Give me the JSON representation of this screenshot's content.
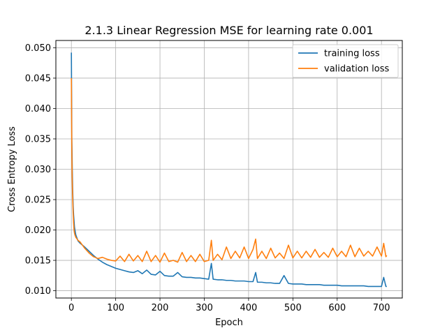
{
  "chart_data": {
    "type": "line",
    "title": "2.1.3 Linear Regression MSE for learning rate 0.001",
    "xlabel": "Epoch",
    "ylabel": "Cross Entropy Loss",
    "xlim": [
      -35,
      747
    ],
    "ylim": [
      0.0088,
      0.0512
    ],
    "xticks": [
      0,
      100,
      200,
      300,
      400,
      500,
      600,
      700
    ],
    "xtick_labels": [
      "0",
      "100",
      "200",
      "300",
      "400",
      "500",
      "600",
      "700"
    ],
    "yticks": [
      0.01,
      0.015,
      0.02,
      0.025,
      0.03,
      0.035,
      0.04,
      0.045,
      0.05
    ],
    "ytick_labels": [
      "0.010",
      "0.015",
      "0.020",
      "0.025",
      "0.030",
      "0.035",
      "0.040",
      "0.045",
      "0.050"
    ],
    "grid": true,
    "legend_position": "top-right",
    "series": [
      {
        "name": "training loss",
        "color": "#1f77b4",
        "x": [
          0,
          1,
          2,
          3,
          4,
          5,
          6,
          7,
          8,
          10,
          12,
          15,
          20,
          25,
          30,
          40,
          50,
          60,
          70,
          80,
          90,
          100,
          110,
          120,
          130,
          140,
          150,
          160,
          170,
          180,
          190,
          200,
          210,
          220,
          230,
          240,
          250,
          260,
          270,
          280,
          290,
          300,
          310,
          316,
          320,
          330,
          340,
          350,
          360,
          370,
          380,
          390,
          400,
          410,
          416,
          420,
          430,
          440,
          450,
          460,
          470,
          480,
          490,
          500,
          510,
          520,
          530,
          540,
          550,
          560,
          570,
          580,
          590,
          600,
          610,
          620,
          630,
          640,
          650,
          660,
          670,
          680,
          690,
          700,
          705,
          710,
          712
        ],
        "values": [
          0.0492,
          0.035,
          0.03,
          0.0265,
          0.024,
          0.0225,
          0.0215,
          0.0205,
          0.02,
          0.0192,
          0.0188,
          0.0182,
          0.0178,
          0.0175,
          0.0172,
          0.0165,
          0.0158,
          0.0152,
          0.0147,
          0.0143,
          0.014,
          0.0137,
          0.0135,
          0.0133,
          0.0131,
          0.013,
          0.0133,
          0.0128,
          0.0134,
          0.0127,
          0.0126,
          0.0132,
          0.0125,
          0.0124,
          0.0124,
          0.013,
          0.0123,
          0.0122,
          0.0122,
          0.0121,
          0.0121,
          0.012,
          0.0119,
          0.0145,
          0.0119,
          0.0118,
          0.0118,
          0.0117,
          0.0117,
          0.0116,
          0.0116,
          0.0116,
          0.0115,
          0.0115,
          0.013,
          0.0114,
          0.0114,
          0.0113,
          0.0113,
          0.0112,
          0.0112,
          0.0125,
          0.0112,
          0.0111,
          0.0111,
          0.0111,
          0.011,
          0.011,
          0.011,
          0.011,
          0.0109,
          0.0109,
          0.0109,
          0.0109,
          0.0108,
          0.0108,
          0.0108,
          0.0108,
          0.0108,
          0.0108,
          0.0107,
          0.0107,
          0.0107,
          0.0107,
          0.0122,
          0.0107,
          0.0107
        ]
      },
      {
        "name": "validation loss",
        "color": "#ff7f0e",
        "x": [
          0,
          1,
          2,
          3,
          4,
          5,
          6,
          7,
          8,
          10,
          12,
          15,
          20,
          25,
          30,
          40,
          50,
          60,
          70,
          80,
          90,
          100,
          110,
          120,
          130,
          140,
          150,
          160,
          170,
          180,
          190,
          200,
          210,
          220,
          230,
          240,
          250,
          260,
          270,
          280,
          290,
          300,
          310,
          316,
          320,
          330,
          340,
          350,
          360,
          370,
          380,
          390,
          400,
          410,
          416,
          420,
          430,
          440,
          450,
          460,
          470,
          480,
          490,
          500,
          510,
          520,
          530,
          540,
          550,
          560,
          570,
          580,
          590,
          600,
          610,
          620,
          630,
          640,
          650,
          660,
          670,
          680,
          690,
          700,
          705,
          710,
          712
        ],
        "values": [
          0.045,
          0.033,
          0.028,
          0.025,
          0.0228,
          0.0212,
          0.02,
          0.0195,
          0.0192,
          0.0188,
          0.0186,
          0.0183,
          0.018,
          0.0175,
          0.017,
          0.0162,
          0.0156,
          0.0153,
          0.0155,
          0.0152,
          0.015,
          0.0149,
          0.0157,
          0.0148,
          0.016,
          0.0149,
          0.0158,
          0.0148,
          0.0165,
          0.0148,
          0.0158,
          0.0147,
          0.0162,
          0.0148,
          0.015,
          0.0147,
          0.0163,
          0.0148,
          0.0158,
          0.0148,
          0.016,
          0.0148,
          0.015,
          0.0183,
          0.015,
          0.016,
          0.0151,
          0.0172,
          0.0153,
          0.0165,
          0.0154,
          0.0172,
          0.0153,
          0.0168,
          0.0185,
          0.0153,
          0.0165,
          0.0153,
          0.017,
          0.0154,
          0.0162,
          0.0153,
          0.0175,
          0.0154,
          0.0165,
          0.0154,
          0.0165,
          0.0155,
          0.0168,
          0.0155,
          0.0163,
          0.0155,
          0.017,
          0.0156,
          0.0165,
          0.0156,
          0.0175,
          0.0156,
          0.017,
          0.0157,
          0.0165,
          0.0157,
          0.0172,
          0.0157,
          0.0178,
          0.0156,
          0.0158
        ]
      }
    ]
  }
}
